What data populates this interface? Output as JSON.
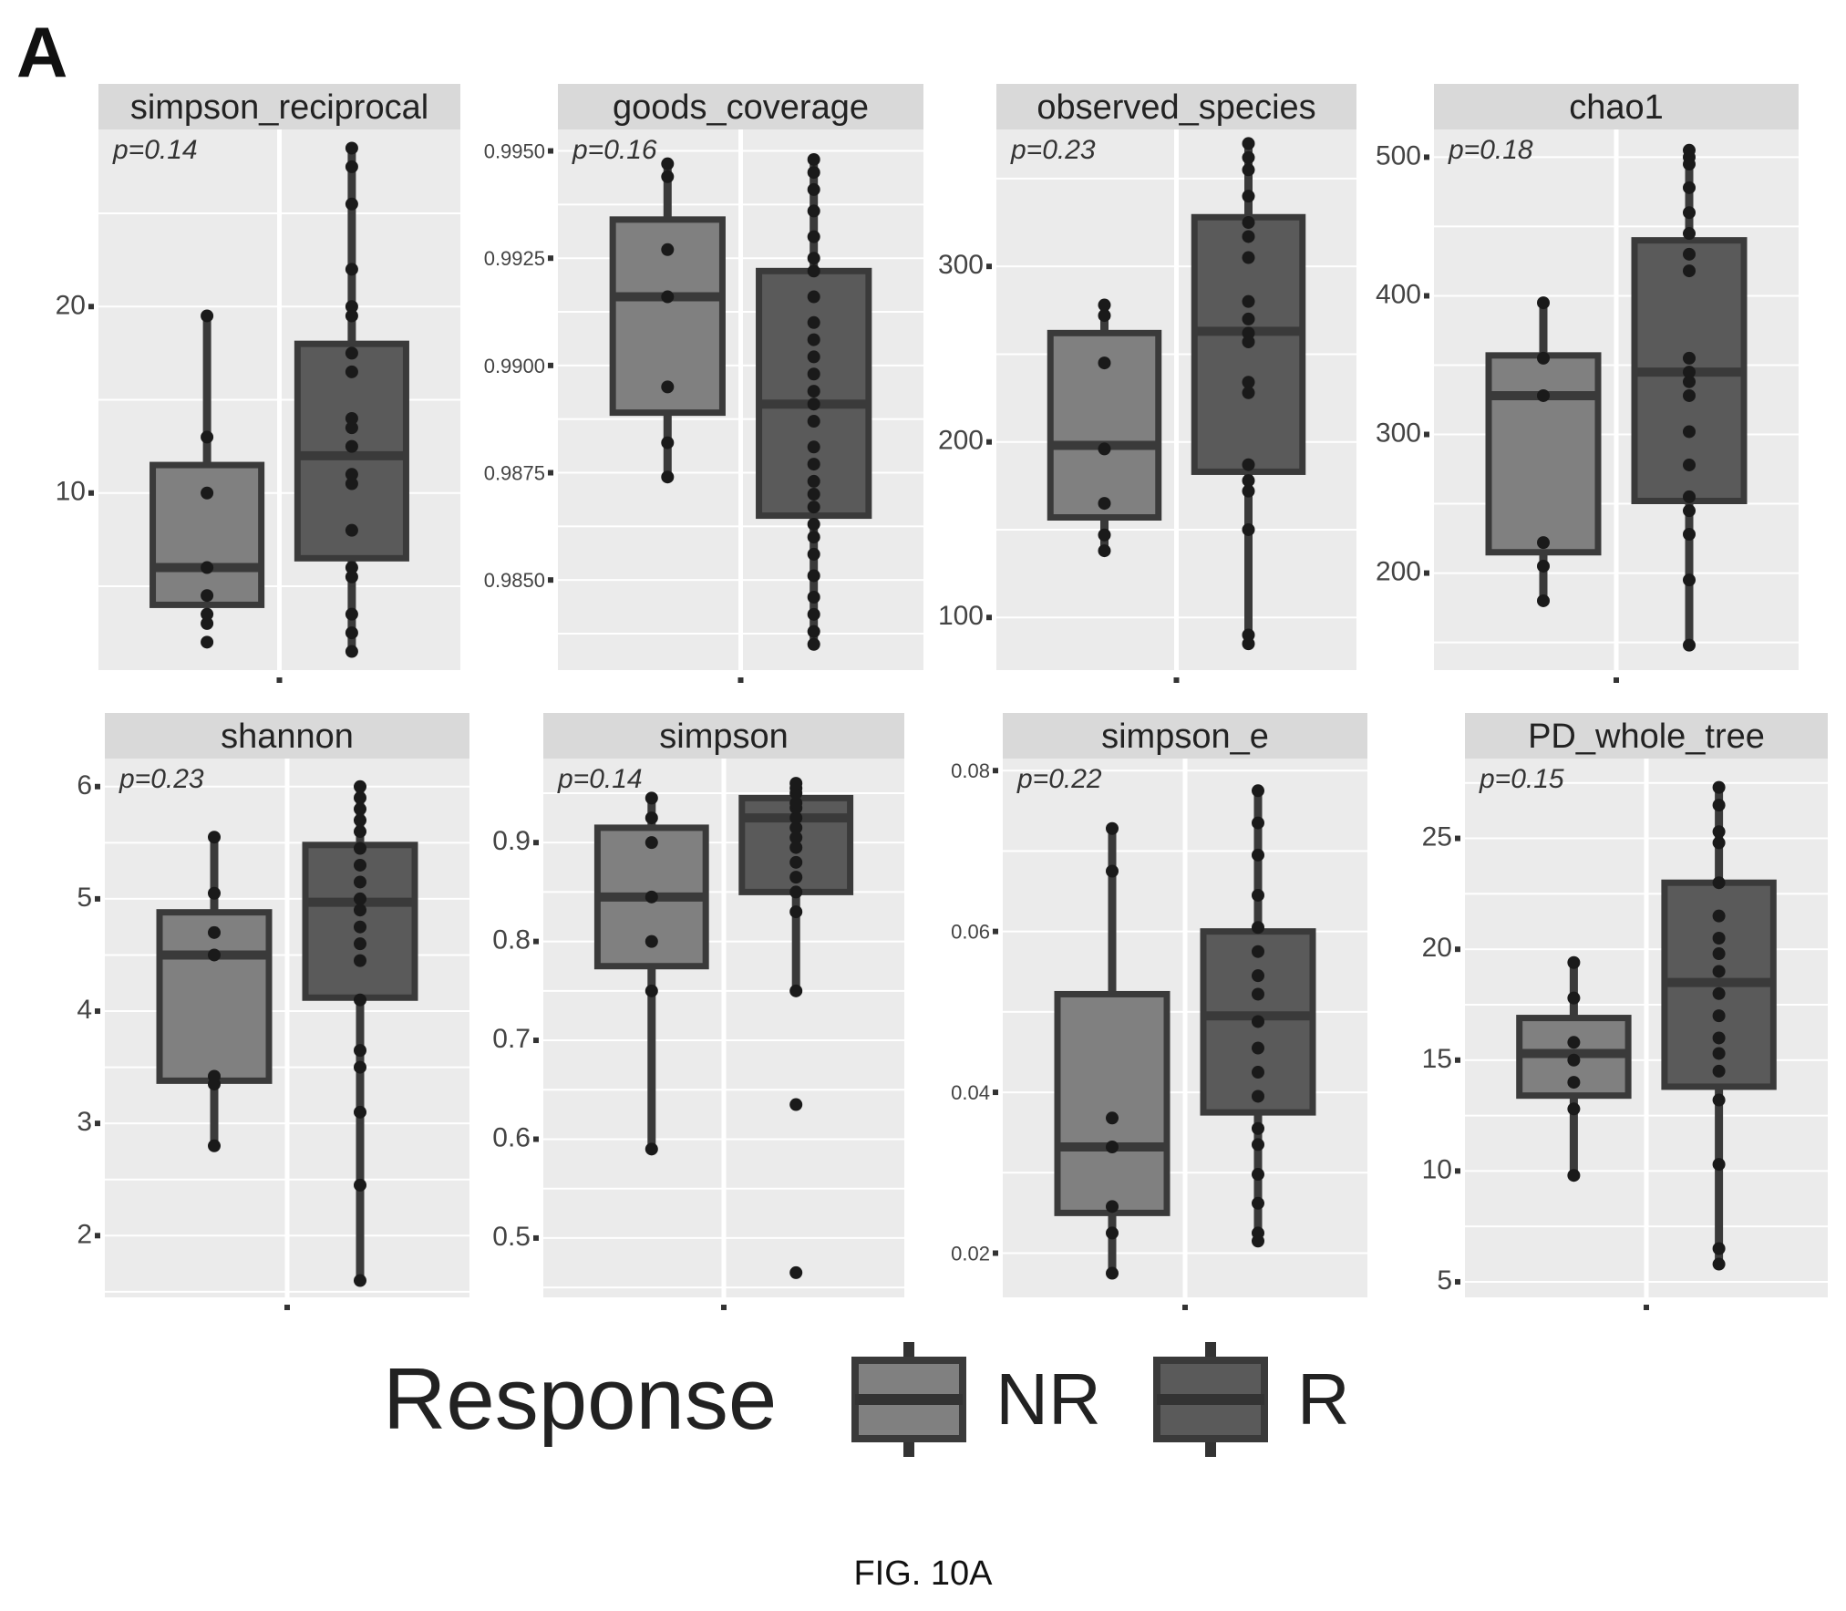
{
  "figure": {
    "panel_letter": "A",
    "caption": "FIG. 10A"
  },
  "legend": {
    "title": "Response",
    "items": [
      {
        "label": "NR",
        "color": "#808080"
      },
      {
        "label": "R",
        "color": "#5a5a5a"
      }
    ]
  },
  "colors": {
    "NR_fill": "#808080",
    "R_fill": "#5a5a5a",
    "outline": "#3a3a3a",
    "point": "#1a1a1a",
    "panel_bg": "#ebebeb",
    "strip_bg": "#d9d9d9"
  },
  "chart_data": [
    {
      "type": "box",
      "facet": "simpson_reciprocal",
      "pvalue": "p=0.14",
      "yticks": [
        "10",
        "20"
      ],
      "ylim": [
        0.5,
        29.5
      ],
      "groups": [
        {
          "name": "NR",
          "box": {
            "lower": 4.0,
            "q1": 4.0,
            "median": 6.0,
            "q3": 11.5,
            "upper": 19.5
          },
          "points": [
            2.0,
            3.0,
            3.5,
            4.5,
            6.0,
            10.0,
            13.0,
            19.5
          ]
        },
        {
          "name": "R",
          "box": {
            "lower": 1.5,
            "q1": 6.5,
            "median": 12.0,
            "q3": 18.0,
            "upper": 28.5
          },
          "points": [
            1.5,
            2.5,
            3.5,
            5.5,
            6.0,
            8.0,
            10.5,
            11.0,
            12.5,
            13.5,
            14.0,
            16.5,
            17.5,
            19.5,
            20.0,
            22.0,
            25.5,
            27.5,
            28.5
          ]
        }
      ]
    },
    {
      "type": "box",
      "facet": "goods_coverage",
      "pvalue": "p=0.16",
      "yticks": [
        "0.9850",
        "0.9875",
        "0.9900",
        "0.9925",
        "0.9950"
      ],
      "ylim": [
        0.9829,
        0.9955
      ],
      "groups": [
        {
          "name": "NR",
          "box": {
            "lower": 0.9874,
            "q1": 0.9889,
            "median": 0.9916,
            "q3": 0.9934,
            "upper": 0.9947
          },
          "points": [
            0.9874,
            0.9882,
            0.9895,
            0.9916,
            0.9927,
            0.9944,
            0.9947
          ]
        },
        {
          "name": "R",
          "box": {
            "lower": 0.9835,
            "q1": 0.9865,
            "median": 0.9891,
            "q3": 0.9922,
            "upper": 0.9948
          },
          "points": [
            0.9835,
            0.9838,
            0.9842,
            0.9846,
            0.9851,
            0.9856,
            0.986,
            0.9863,
            0.9867,
            0.987,
            0.9873,
            0.9877,
            0.9881,
            0.9887,
            0.9891,
            0.9894,
            0.9898,
            0.9902,
            0.9906,
            0.991,
            0.9916,
            0.9922,
            0.9925,
            0.993,
            0.9936,
            0.9941,
            0.9945,
            0.9948
          ]
        }
      ]
    },
    {
      "type": "box",
      "facet": "observed_species",
      "pvalue": "p=0.23",
      "yticks": [
        "100",
        "200",
        "300"
      ],
      "ylim": [
        70,
        378
      ],
      "groups": [
        {
          "name": "NR",
          "box": {
            "lower": 138,
            "q1": 157,
            "median": 198,
            "q3": 262,
            "upper": 278
          },
          "points": [
            138,
            147,
            165,
            196,
            245,
            272,
            278
          ]
        },
        {
          "name": "R",
          "box": {
            "lower": 85,
            "q1": 183,
            "median": 263,
            "q3": 328,
            "upper": 370
          },
          "points": [
            85,
            90,
            150,
            172,
            178,
            187,
            228,
            234,
            257,
            262,
            270,
            280,
            305,
            317,
            325,
            340,
            355,
            362,
            370
          ]
        }
      ]
    },
    {
      "type": "box",
      "facet": "chao1",
      "pvalue": "p=0.18",
      "yticks": [
        "200",
        "300",
        "400",
        "500"
      ],
      "ylim": [
        130,
        520
      ],
      "groups": [
        {
          "name": "NR",
          "box": {
            "lower": 180,
            "q1": 215,
            "median": 328,
            "q3": 357,
            "upper": 395
          },
          "points": [
            180,
            205,
            222,
            328,
            355,
            395
          ]
        },
        {
          "name": "R",
          "box": {
            "lower": 148,
            "q1": 252,
            "median": 345,
            "q3": 440,
            "upper": 505
          },
          "points": [
            148,
            195,
            228,
            245,
            255,
            278,
            302,
            328,
            338,
            345,
            355,
            418,
            430,
            445,
            460,
            478,
            495,
            500,
            505
          ]
        }
      ]
    },
    {
      "type": "box",
      "facet": "shannon",
      "pvalue": "p=0.23",
      "yticks": [
        "2",
        "3",
        "4",
        "5",
        "6"
      ],
      "ylim": [
        1.45,
        6.25
      ],
      "groups": [
        {
          "name": "NR",
          "box": {
            "lower": 2.8,
            "q1": 3.38,
            "median": 4.5,
            "q3": 4.88,
            "upper": 5.55
          },
          "points": [
            2.8,
            3.35,
            3.42,
            4.5,
            4.7,
            5.05,
            5.55
          ]
        },
        {
          "name": "R",
          "box": {
            "lower": 1.6,
            "q1": 4.12,
            "median": 4.97,
            "q3": 5.48,
            "upper": 6.0
          },
          "points": [
            1.6,
            2.45,
            3.1,
            3.5,
            3.65,
            4.1,
            4.45,
            4.6,
            4.75,
            4.9,
            5.0,
            5.15,
            5.3,
            5.45,
            5.6,
            5.7,
            5.8,
            5.9,
            6.0
          ]
        }
      ]
    },
    {
      "type": "box",
      "facet": "simpson",
      "pvalue": "p=0.14",
      "yticks": [
        "0.5",
        "0.6",
        "0.7",
        "0.8",
        "0.9"
      ],
      "ylim": [
        0.44,
        0.985
      ],
      "groups": [
        {
          "name": "NR",
          "box": {
            "lower": 0.59,
            "q1": 0.775,
            "median": 0.845,
            "q3": 0.915,
            "upper": 0.945
          },
          "points": [
            0.59,
            0.75,
            0.8,
            0.845,
            0.9,
            0.925,
            0.945
          ]
        },
        {
          "name": "R",
          "box": {
            "lower": 0.75,
            "q1": 0.85,
            "median": 0.925,
            "q3": 0.945,
            "upper": 0.96
          },
          "points": [
            0.465,
            0.635,
            0.75,
            0.83,
            0.85,
            0.865,
            0.88,
            0.895,
            0.905,
            0.915,
            0.925,
            0.935,
            0.94,
            0.95,
            0.955,
            0.96
          ]
        }
      ]
    },
    {
      "type": "box",
      "facet": "simpson_e",
      "pvalue": "p=0.22",
      "yticks": [
        "0.02",
        "0.04",
        "0.06",
        "0.08"
      ],
      "ylim": [
        0.0145,
        0.0815
      ],
      "groups": [
        {
          "name": "NR",
          "box": {
            "lower": 0.0175,
            "q1": 0.025,
            "median": 0.0332,
            "q3": 0.0522,
            "upper": 0.0728
          },
          "points": [
            0.0175,
            0.0225,
            0.0258,
            0.0332,
            0.0368,
            0.0675,
            0.0728
          ]
        },
        {
          "name": "R",
          "box": {
            "lower": 0.0215,
            "q1": 0.0375,
            "median": 0.0495,
            "q3": 0.06,
            "upper": 0.0775
          },
          "points": [
            0.0215,
            0.0225,
            0.0262,
            0.0298,
            0.0335,
            0.0355,
            0.0395,
            0.0425,
            0.0455,
            0.0488,
            0.0522,
            0.0545,
            0.0575,
            0.0605,
            0.0645,
            0.0695,
            0.0735,
            0.0775
          ]
        }
      ]
    },
    {
      "type": "box",
      "facet": "PD_whole_tree",
      "pvalue": "p=0.15",
      "yticks": [
        "5",
        "10",
        "15",
        "20",
        "25"
      ],
      "ylim": [
        4.3,
        28.6
      ],
      "groups": [
        {
          "name": "NR",
          "box": {
            "lower": 9.8,
            "q1": 13.4,
            "median": 15.3,
            "q3": 16.9,
            "upper": 19.4
          },
          "points": [
            9.8,
            12.8,
            14.0,
            15.0,
            15.8,
            17.8,
            19.4
          ]
        },
        {
          "name": "R",
          "box": {
            "lower": 5.8,
            "q1": 13.8,
            "median": 18.5,
            "q3": 23.0,
            "upper": 27.3
          },
          "points": [
            5.8,
            6.5,
            10.3,
            13.2,
            14.5,
            15.3,
            16.0,
            17.0,
            18.0,
            19.0,
            19.8,
            20.5,
            21.5,
            23.0,
            24.8,
            25.3,
            26.5,
            27.3
          ]
        }
      ]
    }
  ]
}
